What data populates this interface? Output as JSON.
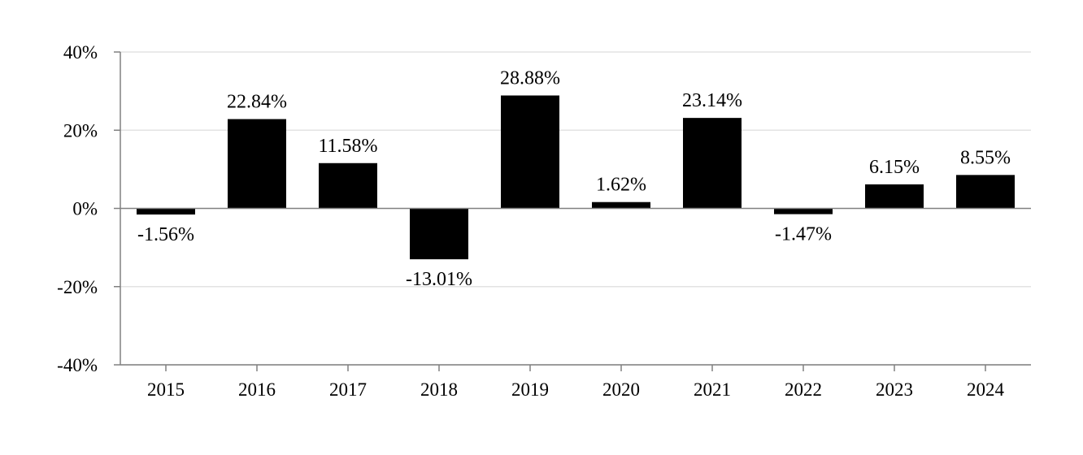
{
  "chart_data": {
    "type": "bar",
    "categories": [
      "2015",
      "2016",
      "2017",
      "2018",
      "2019",
      "2020",
      "2021",
      "2022",
      "2023",
      "2024"
    ],
    "values": [
      -1.56,
      22.84,
      11.58,
      -13.01,
      28.88,
      1.62,
      23.14,
      -1.47,
      6.15,
      8.55
    ],
    "data_labels": [
      "-1.56%",
      "22.84%",
      "11.58%",
      "-13.01%",
      "28.88%",
      "1.62%",
      "23.14%",
      "-1.47%",
      "6.15%",
      "8.55%"
    ],
    "y_ticks": [
      40,
      20,
      0,
      -20,
      -40
    ],
    "y_tick_labels": [
      "40%",
      "20%",
      "0%",
      "-20%",
      "-40%"
    ],
    "ylim": [
      -40,
      40
    ],
    "title": "",
    "xlabel": "",
    "ylabel": "",
    "grid": true,
    "legend": "none",
    "colors": {
      "bar": "#000000",
      "grid": "#e3e3e3",
      "axis": "#808080",
      "text": "#000000"
    }
  }
}
